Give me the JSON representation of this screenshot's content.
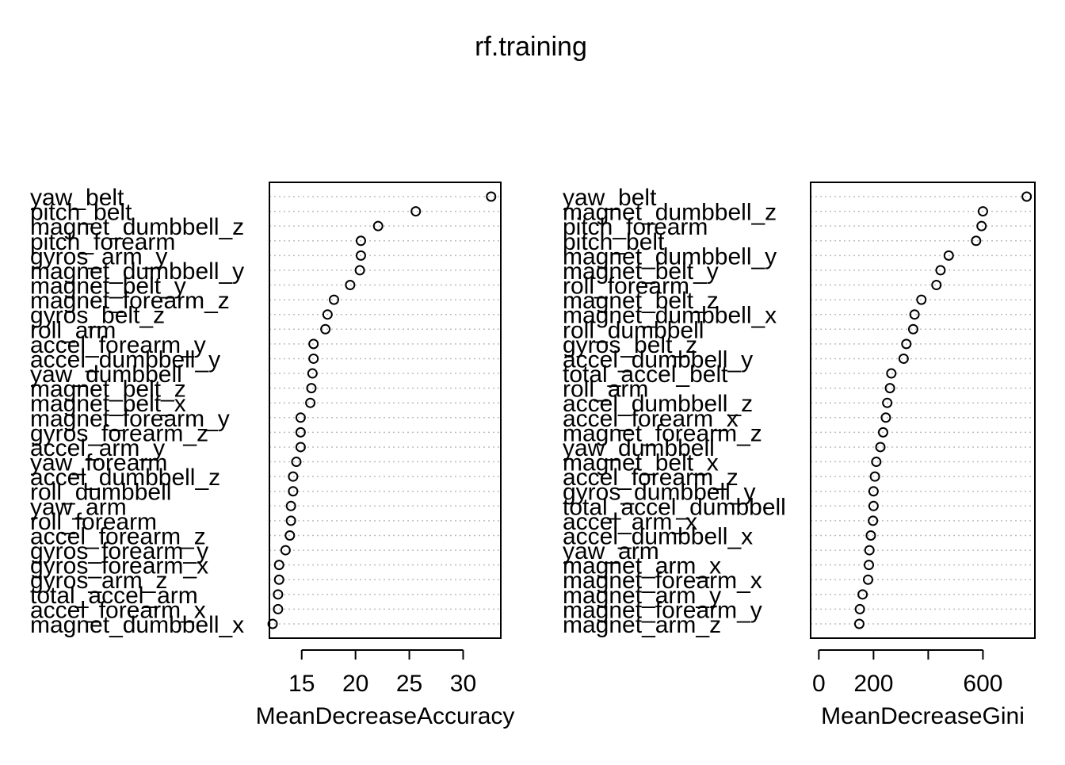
{
  "title": "rf.training",
  "chart_data": [
    {
      "type": "scatter",
      "style": "dotchart",
      "xlabel": "MeanDecreaseAccuracy",
      "xlim": [
        12,
        33.5
      ],
      "xticks": [
        15,
        20,
        25,
        30
      ],
      "grid": "dotted horizontal",
      "labels": [
        "yaw_belt",
        "pitch_belt",
        "magnet_dumbbell_z",
        "pitch_forearm",
        "gyros_arm_y",
        "magnet_dumbbell_y",
        "magnet_belt_y",
        "magnet_forearm_z",
        "gyros_belt_z",
        "roll_arm",
        "accel_forearm_y",
        "accel_dumbbell_y",
        "yaw_dumbbell",
        "magnet_belt_z",
        "magnet_belt_x",
        "magnet_forearm_y",
        "gyros_forearm_z",
        "accel_arm_y",
        "yaw_forearm",
        "accel_dumbbell_z",
        "roll_dumbbell",
        "yaw_arm",
        "roll_forearm",
        "accel_forearm_z",
        "gyros_forearm_y",
        "gyros_forearm_x",
        "gyros_arm_z",
        "total_accel_arm",
        "accel_forearm_x",
        "magnet_dumbbell_x"
      ],
      "values": [
        32.6,
        25.6,
        22.1,
        20.5,
        20.5,
        20.4,
        19.5,
        18.0,
        17.4,
        17.2,
        16.1,
        16.1,
        16.0,
        15.9,
        15.8,
        14.9,
        14.9,
        14.9,
        14.5,
        14.2,
        14.2,
        14.0,
        14.0,
        13.9,
        13.5,
        12.9,
        12.9,
        12.8,
        12.8,
        12.3
      ]
    },
    {
      "type": "scatter",
      "style": "dotchart",
      "xlabel": "MeanDecreaseGini",
      "xlim": [
        -30,
        790
      ],
      "xticks": [
        0,
        200,
        400,
        600
      ],
      "xtick_labels": [
        "0",
        "200",
        "",
        "600"
      ],
      "grid": "dotted horizontal",
      "labels": [
        "yaw_belt",
        "magnet_dumbbell_z",
        "pitch_forearm",
        "pitch_belt",
        "magnet_dumbbell_y",
        "magnet_belt_y",
        "roll_forearm",
        "magnet_belt_z",
        "magnet_dumbbell_x",
        "roll_dumbbell",
        "gyros_belt_z",
        "accel_dumbbell_y",
        "total_accel_belt",
        "roll_arm",
        "accel_dumbbell_z",
        "accel_forearm_x",
        "magnet_forearm_z",
        "yaw_dumbbell",
        "magnet_belt_x",
        "accel_forearm_z",
        "gyros_dumbbell_y",
        "total_accel_dumbbell",
        "accel_arm_x",
        "accel_dumbbell_x",
        "yaw_arm",
        "magnet_arm_x",
        "magnet_forearm_x",
        "magnet_arm_y",
        "magnet_forearm_y",
        "magnet_arm_z"
      ],
      "values": [
        760,
        600,
        595,
        575,
        475,
        445,
        430,
        375,
        350,
        345,
        320,
        310,
        265,
        260,
        250,
        245,
        235,
        225,
        210,
        205,
        200,
        200,
        198,
        190,
        185,
        183,
        180,
        160,
        150,
        148
      ]
    }
  ]
}
